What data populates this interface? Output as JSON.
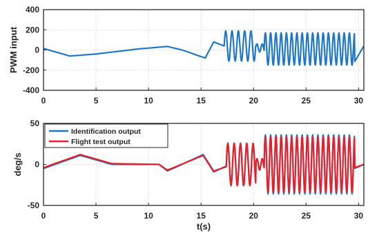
{
  "chart_data": [
    {
      "type": "line",
      "title": "",
      "xlabel": "",
      "ylabel": "PWM input",
      "xlim": [
        0,
        30.5
      ],
      "ylim": [
        -400,
        400
      ],
      "xticks": [
        "0",
        "5",
        "10",
        "15",
        "20",
        "25",
        "30"
      ],
      "yticks": [
        "400",
        "200",
        "0",
        "-200",
        "-400"
      ],
      "grid": true,
      "series": [
        {
          "color": "#1f77c8",
          "segments": [
            {
              "x0": 0.0,
              "x1": 2.5,
              "shape": "linear",
              "y0": 15,
              "y1": -60
            },
            {
              "x0": 2.5,
              "x1": 5.0,
              "shape": "linear",
              "y0": -60,
              "y1": -40
            },
            {
              "x0": 5.0,
              "x1": 9.0,
              "shape": "linear",
              "y0": -40,
              "y1": 10
            },
            {
              "x0": 9.0,
              "x1": 11.8,
              "shape": "linear",
              "y0": 10,
              "y1": 35
            },
            {
              "x0": 11.8,
              "x1": 13.2,
              "shape": "linear",
              "y0": 35,
              "y1": 0
            },
            {
              "x0": 13.2,
              "x1": 15.4,
              "shape": "linear",
              "y0": 0,
              "y1": -80
            },
            {
              "x0": 15.4,
              "x1": 16.2,
              "shape": "linear",
              "y0": -80,
              "y1": 80
            },
            {
              "x0": 16.2,
              "x1": 17.2,
              "shape": "linear",
              "y0": 80,
              "y1": 40
            },
            {
              "x0": 17.2,
              "x1": 20.2,
              "shape": "sine",
              "amp": 150,
              "center": 40,
              "period": 0.6
            },
            {
              "x0": 20.2,
              "x1": 21.0,
              "shape": "sine",
              "amp": 40,
              "center": 20,
              "period": 0.5
            },
            {
              "x0": 21.0,
              "x1": 29.6,
              "shape": "sine",
              "amp": 160,
              "center": 10,
              "period": 0.5
            },
            {
              "x0": 29.6,
              "x1": 30.5,
              "shape": "linear",
              "y0": -120,
              "y1": 40
            }
          ]
        }
      ]
    },
    {
      "type": "line",
      "title": "",
      "xlabel": "t(s)",
      "ylabel": "deg/s",
      "xlim": [
        0,
        30.5
      ],
      "ylim": [
        -50,
        50
      ],
      "xticks": [
        "0",
        "5",
        "10",
        "15",
        "20",
        "25",
        "30"
      ],
      "yticks": [
        "50",
        "0",
        "-50"
      ],
      "grid": true,
      "legend_position": "top-left",
      "series": [
        {
          "name": "Identification output",
          "color": "#1f77c8",
          "segments": [
            {
              "x0": 0.0,
              "x1": 3.5,
              "shape": "linear",
              "y0": -5,
              "y1": 11
            },
            {
              "x0": 3.5,
              "x1": 6.5,
              "shape": "linear",
              "y0": 11,
              "y1": 0
            },
            {
              "x0": 6.5,
              "x1": 11.0,
              "shape": "linear",
              "y0": 0,
              "y1": 0
            },
            {
              "x0": 11.0,
              "x1": 11.8,
              "shape": "linear",
              "y0": 0,
              "y1": -8
            },
            {
              "x0": 11.8,
              "x1": 15.2,
              "shape": "linear",
              "y0": -8,
              "y1": 12
            },
            {
              "x0": 15.2,
              "x1": 16.2,
              "shape": "linear",
              "y0": 12,
              "y1": -8
            },
            {
              "x0": 16.2,
              "x1": 17.4,
              "shape": "linear",
              "y0": -8,
              "y1": -3
            },
            {
              "x0": 17.4,
              "x1": 20.2,
              "shape": "sine",
              "amp": 24,
              "center": 0,
              "period": 0.6
            },
            {
              "x0": 20.2,
              "x1": 21.0,
              "shape": "sine",
              "amp": 6,
              "center": 0,
              "period": 0.5
            },
            {
              "x0": 21.0,
              "x1": 29.6,
              "shape": "sine",
              "amp": 36,
              "center": 0,
              "period": 0.5
            },
            {
              "x0": 29.6,
              "x1": 30.5,
              "shape": "linear",
              "y0": -5,
              "y1": 0
            }
          ]
        },
        {
          "name": "Flight test output",
          "color": "#e8202a",
          "segments": [
            {
              "x0": 0.0,
              "x1": 3.5,
              "shape": "linear",
              "y0": -4,
              "y1": 12
            },
            {
              "x0": 3.5,
              "x1": 6.5,
              "shape": "linear",
              "y0": 12,
              "y1": 1
            },
            {
              "x0": 6.5,
              "x1": 11.0,
              "shape": "linear",
              "y0": 1,
              "y1": 0
            },
            {
              "x0": 11.0,
              "x1": 11.8,
              "shape": "linear",
              "y0": 0,
              "y1": -7
            },
            {
              "x0": 11.8,
              "x1": 15.2,
              "shape": "linear",
              "y0": -7,
              "y1": 11
            },
            {
              "x0": 15.2,
              "x1": 16.2,
              "shape": "linear",
              "y0": 11,
              "y1": -9
            },
            {
              "x0": 16.2,
              "x1": 17.4,
              "shape": "linear",
              "y0": -9,
              "y1": -2
            },
            {
              "x0": 17.4,
              "x1": 20.2,
              "shape": "sine",
              "amp": 26,
              "center": 0,
              "period": 0.6
            },
            {
              "x0": 20.2,
              "x1": 21.0,
              "shape": "sine",
              "amp": 7,
              "center": 0,
              "period": 0.5
            },
            {
              "x0": 21.0,
              "x1": 29.6,
              "shape": "sine",
              "amp": 34,
              "center": 0,
              "period": 0.5
            },
            {
              "x0": 29.6,
              "x1": 30.5,
              "shape": "linear",
              "y0": -4,
              "y1": 0
            }
          ]
        }
      ]
    }
  ]
}
